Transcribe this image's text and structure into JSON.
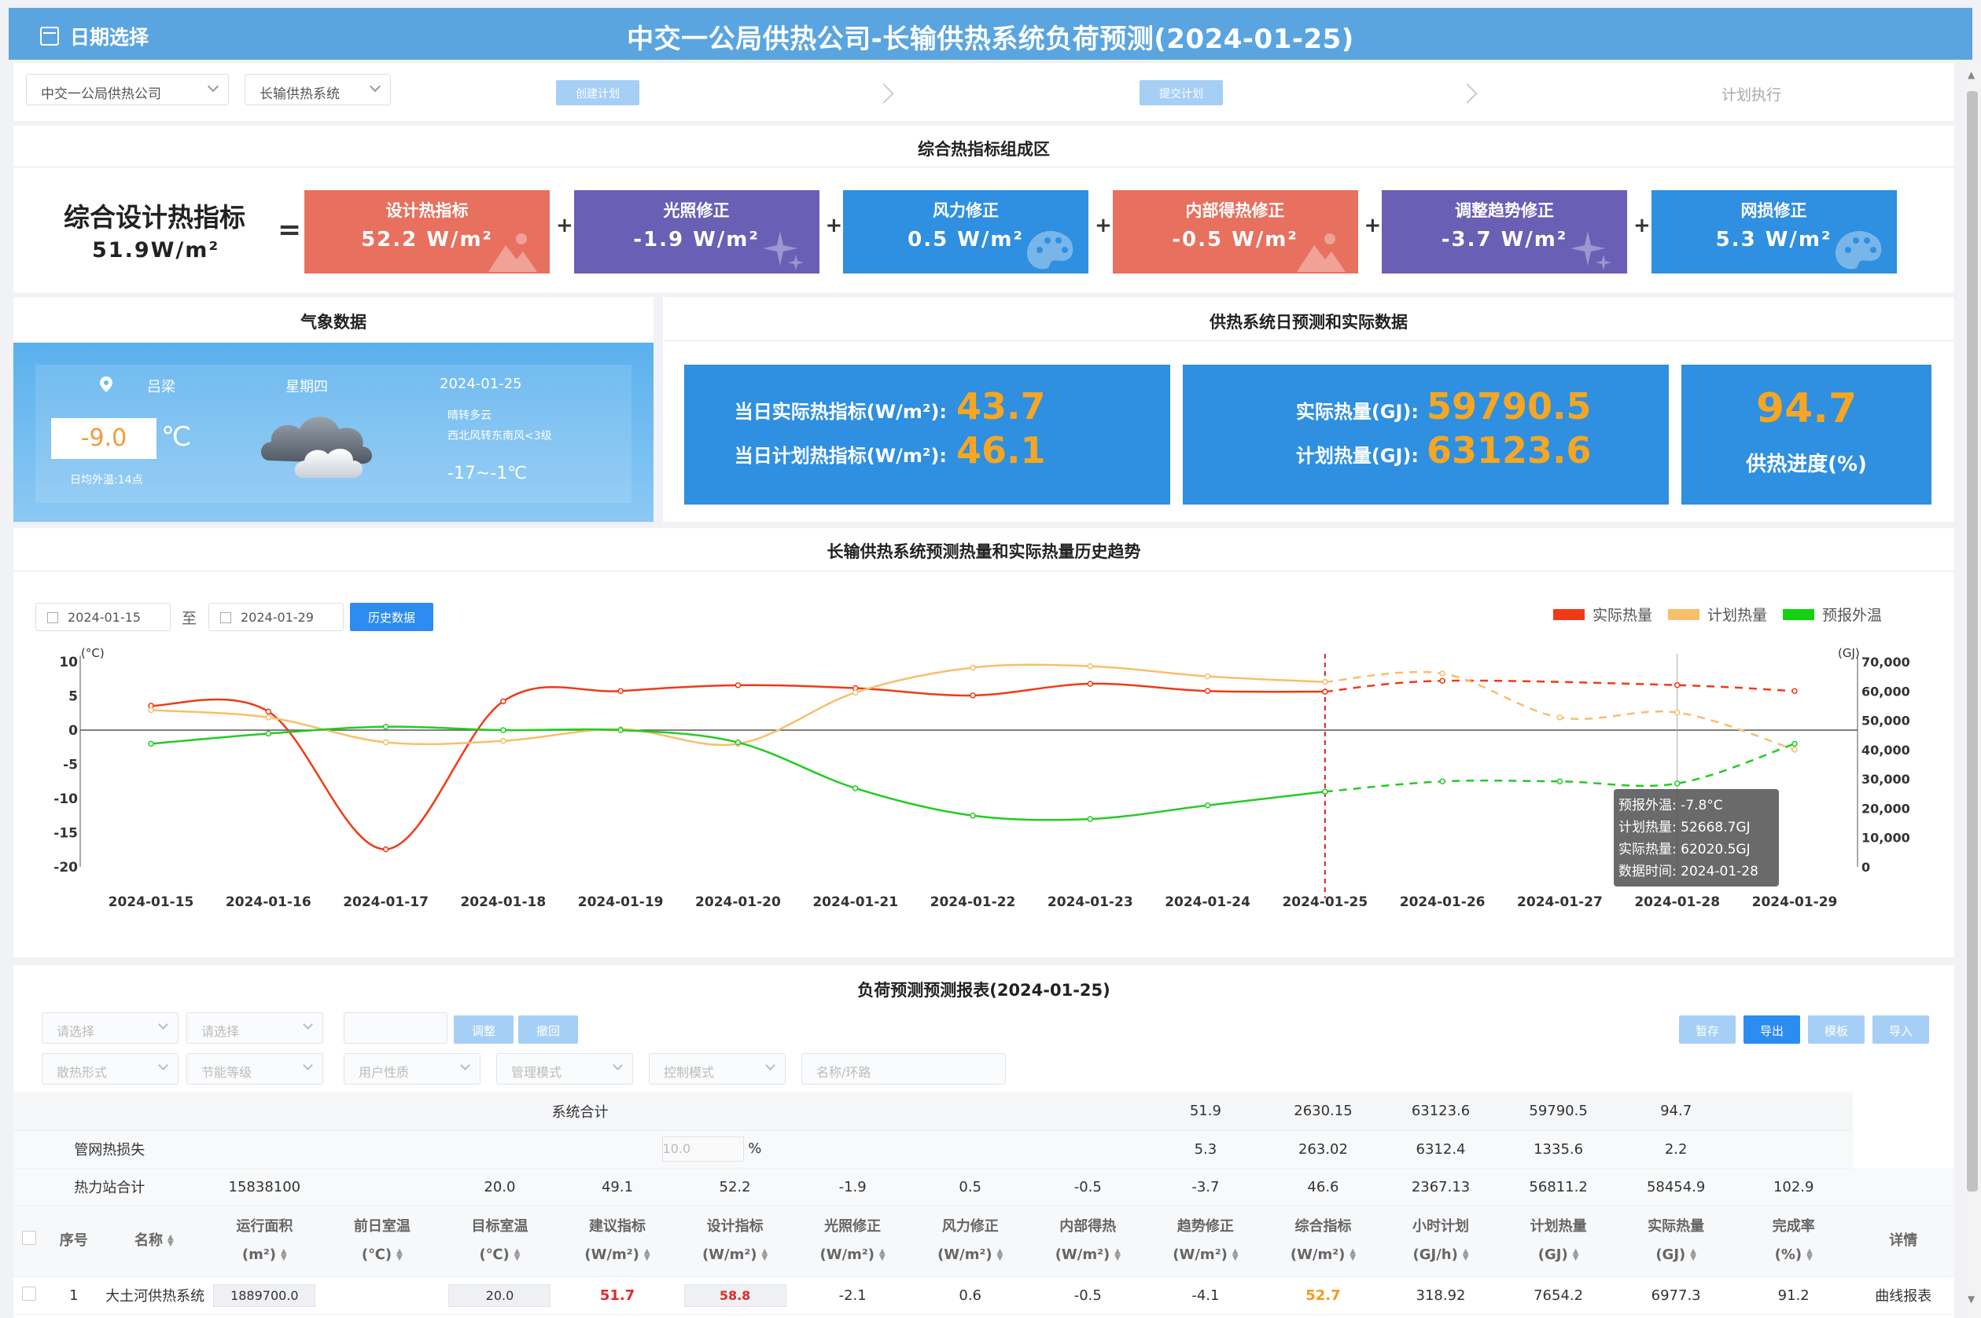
{
  "header": {
    "date_picker_label": "日期选择",
    "title": "中交一公局供热公司-长输供热系统负荷预测(2024-01-25)"
  },
  "steps": {
    "company_select": "中交一公局供热公司",
    "system_select": "长输供热系统",
    "create_plan": "创建计划",
    "submit_plan": "提交计划",
    "execute_plan": "计划执行"
  },
  "heat_index": {
    "section_title": "综合热指标组成区",
    "label": "综合设计热指标",
    "value": "51.9W/m²",
    "equals": "=",
    "plus": "+",
    "cards": [
      {
        "name": "设计热指标",
        "value": "52.2 W/m²",
        "color": "#e8705f"
      },
      {
        "name": "光照修正",
        "value": "-1.9 W/m²",
        "color": "#6a5fb5"
      },
      {
        "name": "风力修正",
        "value": "0.5 W/m²",
        "color": "#2f8fe0"
      },
      {
        "name": "内部得热修正",
        "value": "-0.5 W/m²",
        "color": "#e8705f"
      },
      {
        "name": "调整趋势修正",
        "value": "-3.7 W/m²",
        "color": "#6a5fb5"
      },
      {
        "name": "网损修正",
        "value": "5.3 W/m²",
        "color": "#2f8fe0"
      }
    ]
  },
  "weather": {
    "section_title": "气象数据",
    "city": "吕梁",
    "weekday": "星期四",
    "date": "2024-01-25",
    "temp": "-9.0",
    "temp_unit": "℃",
    "condition": "晴转多云",
    "wind": "西北风转东南风<3级",
    "range": "-17~-1℃",
    "note": "日均外温:14点",
    "icon": "cloud-icon"
  },
  "forecast": {
    "section_title": "供热系统日预测和实际数据",
    "actual_index_label": "当日实际热指标(W/m²):",
    "actual_index": "43.7",
    "plan_index_label": "当日计划热指标(W/m²):",
    "plan_index": "46.1",
    "actual_heat_label": "实际热量(GJ):",
    "actual_heat": "59790.5",
    "plan_heat_label": "计划热量(GJ):",
    "plan_heat": "63123.6",
    "progress": "94.7",
    "progress_label": "供热进度(%)"
  },
  "trend": {
    "section_title": "长输供热系统预测热量和实际热量历史趋势",
    "start_date": "2024-01-15",
    "to": "至",
    "end_date": "2024-01-29",
    "history_button": "历史数据",
    "legend": [
      "实际热量",
      "计划热量",
      "预报外温"
    ],
    "tooltip": {
      "temp": "预报外温:  -7.8°C",
      "plan": "计划热量:  52668.7GJ",
      "actual": "实际热量:  62020.5GJ",
      "time": "数据时间:  2024-01-28"
    }
  },
  "chart_data": {
    "type": "line",
    "x": [
      "2024-01-15",
      "2024-01-16",
      "2024-01-17",
      "2024-01-18",
      "2024-01-19",
      "2024-01-20",
      "2024-01-21",
      "2024-01-22",
      "2024-01-23",
      "2024-01-24",
      "2024-01-25",
      "2024-01-26",
      "2024-01-27",
      "2024-01-28",
      "2024-01-29"
    ],
    "forecast_start": "2024-01-25",
    "left_axis": {
      "unit": "(°C)",
      "ylim": [
        -20,
        10
      ],
      "ticks": [
        10,
        5,
        0,
        -5,
        -10,
        -15,
        -20
      ]
    },
    "right_axis": {
      "unit": "(GJ)",
      "ylim": [
        0,
        70000
      ],
      "ticks": [
        "70,000",
        "60,000",
        "50,000",
        "40,000",
        "30,000",
        "20,000",
        "10,000",
        "0"
      ]
    },
    "series": [
      {
        "name": "实际热量",
        "axis": "right",
        "color": "#f03a17",
        "values": [
          55000,
          53000,
          6000,
          56500,
          60000,
          62000,
          61000,
          58500,
          62500,
          60000,
          59790.5,
          63500,
          null,
          62020.5,
          60000
        ]
      },
      {
        "name": "计划热量",
        "axis": "right",
        "color": "#f7bf6b",
        "values": [
          53500,
          51000,
          42500,
          43000,
          47000,
          42000,
          59500,
          68000,
          68500,
          65000,
          63123.6,
          66000,
          51000,
          52668.7,
          40000
        ]
      },
      {
        "name": "预报外温",
        "axis": "left",
        "color": "#22cc22",
        "values": [
          -2,
          -0.5,
          0.5,
          0,
          0,
          -1.8,
          -8.5,
          -12.5,
          -13,
          -11,
          -9,
          -7.5,
          -7.5,
          -7.8,
          -2
        ]
      }
    ],
    "grid": false,
    "legend_position": "top-right"
  },
  "report": {
    "section_title": "负荷预测预测报表(2024-01-25)",
    "filters_row1": [
      "请选择",
      "请选择",
      ""
    ],
    "adjust_button": "调整",
    "undo_button": "撤回",
    "filters_row2": [
      "散热形式",
      "节能等级",
      "用户性质",
      "管理模式",
      "控制模式",
      "名称/环路"
    ],
    "right_buttons": [
      "暂存",
      "导出",
      "模板",
      "导入"
    ],
    "summary": {
      "label": "系统合计",
      "values": [
        "51.9",
        "2630.15",
        "63123.6",
        "59790.5",
        "94.7"
      ]
    },
    "loss": {
      "label": "管网热损失",
      "pct_placeholder": "10.0",
      "pct_sign": "%",
      "values": [
        "5.3",
        "263.02",
        "6312.4",
        "1335.6",
        "2.2"
      ]
    },
    "stations": {
      "label": "热力站合计",
      "area": "15838100",
      "prev": "",
      "target": "20.0",
      "values": [
        "49.1",
        "52.2",
        "-1.9",
        "0.5",
        "-0.5",
        "-3.7",
        "46.6",
        "2367.13",
        "56811.2",
        "58454.9",
        "102.9"
      ]
    },
    "columns": [
      {
        "t": "序号"
      },
      {
        "t": "名称"
      },
      {
        "t": "运行面积",
        "u": "(m²)"
      },
      {
        "t": "前日室温",
        "u": "(℃)"
      },
      {
        "t": "目标室温",
        "u": "(℃)"
      },
      {
        "t": "建议指标",
        "u": "(W/m²)"
      },
      {
        "t": "设计指标",
        "u": "(W/m²)"
      },
      {
        "t": "光照修正",
        "u": "(W/m²)"
      },
      {
        "t": "风力修正",
        "u": "(W/m²)"
      },
      {
        "t": "内部得热",
        "u": "(W/m²)"
      },
      {
        "t": "趋势修正",
        "u": "(W/m²)"
      },
      {
        "t": "综合指标",
        "u": "(W/m²)"
      },
      {
        "t": "小时计划",
        "u": "(GJ/h)"
      },
      {
        "t": "计划热量",
        "u": "(GJ)"
      },
      {
        "t": "实际热量",
        "u": "(GJ)"
      },
      {
        "t": "完成率",
        "u": "(%)"
      },
      {
        "t": "详情"
      }
    ],
    "rows": [
      {
        "no": "1",
        "name": "大土河供热系统",
        "area": "1889700.0",
        "prev": "",
        "target": "20.0",
        "suggest": "51.7",
        "design": "58.8",
        "light": "-2.1",
        "wind": "0.6",
        "internal": "-0.5",
        "trend": "-4.1",
        "combined": "52.7",
        "hourly": "318.92",
        "plan": "7654.2",
        "actual": "6977.3",
        "rate": "91.2",
        "detail": "曲线报表"
      }
    ]
  }
}
